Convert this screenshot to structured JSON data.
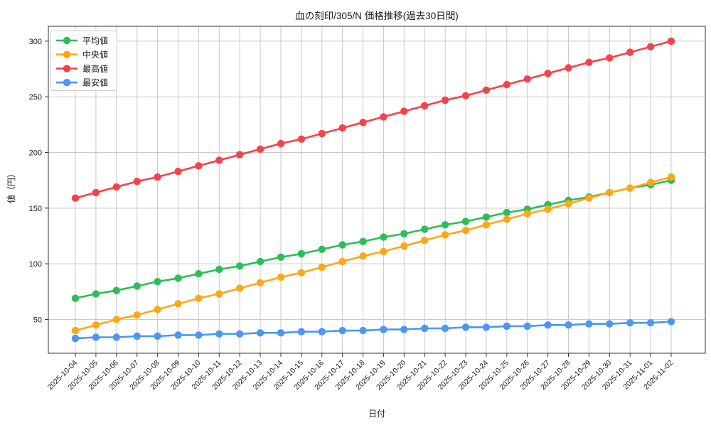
{
  "title": "血の刻印/305/N 価格推移(過去30日間)",
  "colors": {
    "average": "#2ebd59",
    "median": "#ffa716",
    "max": "#f4434b",
    "min": "#4d96f5",
    "grid": "#c9c9c9",
    "spine": "#333333",
    "text": "#1a1a1a",
    "legend_border": "#cccccc",
    "background": "#ffffff"
  },
  "chart_data": {
    "type": "line",
    "title": "血の刻印/305/N 価格推移(過去30日間)",
    "xlabel": "日付",
    "ylabel": "値（円）",
    "grid": true,
    "legend_position": "upper left",
    "ylim": [
      20,
      313
    ],
    "yticks": [
      50,
      100,
      150,
      200,
      250,
      300
    ],
    "x": [
      "2025-10-04",
      "2025-10-05",
      "2025-10-06",
      "2025-10-07",
      "2025-10-08",
      "2025-10-09",
      "2025-10-10",
      "2025-10-11",
      "2025-10-12",
      "2025-10-13",
      "2025-10-14",
      "2025-10-15",
      "2025-10-16",
      "2025-10-17",
      "2025-10-18",
      "2025-10-19",
      "2025-10-20",
      "2025-10-21",
      "2025-10-22",
      "2025-10-23",
      "2025-10-24",
      "2025-10-25",
      "2025-10-26",
      "2025-10-27",
      "2025-10-28",
      "2025-10-29",
      "2025-10-30",
      "2025-10-31",
      "2025-11-01",
      "2025-11-02"
    ],
    "series": [
      {
        "name": "平均値",
        "color": "#2ebd59",
        "values": [
          69,
          73,
          76,
          80,
          84,
          87,
          91,
          95,
          98,
          102,
          106,
          109,
          113,
          117,
          120,
          124,
          127,
          131,
          135,
          138,
          142,
          146,
          149,
          153,
          157,
          160,
          164,
          168,
          171,
          175
        ]
      },
      {
        "name": "中央値",
        "color": "#ffa716",
        "values": [
          40,
          45,
          50,
          54,
          59,
          64,
          69,
          73,
          78,
          83,
          88,
          92,
          97,
          102,
          107,
          111,
          116,
          121,
          126,
          130,
          135,
          140,
          145,
          149,
          154,
          159,
          164,
          168,
          173,
          178
        ]
      },
      {
        "name": "最高値",
        "color": "#f4434b",
        "values": [
          159,
          164,
          169,
          174,
          178,
          183,
          188,
          193,
          198,
          203,
          208,
          212,
          217,
          222,
          227,
          232,
          237,
          242,
          247,
          251,
          256,
          261,
          266,
          271,
          276,
          281,
          285,
          290,
          295,
          300
        ]
      },
      {
        "name": "最安値",
        "color": "#4d96f5",
        "values": [
          33,
          34,
          34,
          35,
          35,
          36,
          36,
          37,
          37,
          38,
          38,
          39,
          39,
          40,
          40,
          41,
          41,
          42,
          42,
          43,
          43,
          44,
          44,
          45,
          45,
          46,
          46,
          47,
          47,
          48
        ]
      }
    ]
  }
}
